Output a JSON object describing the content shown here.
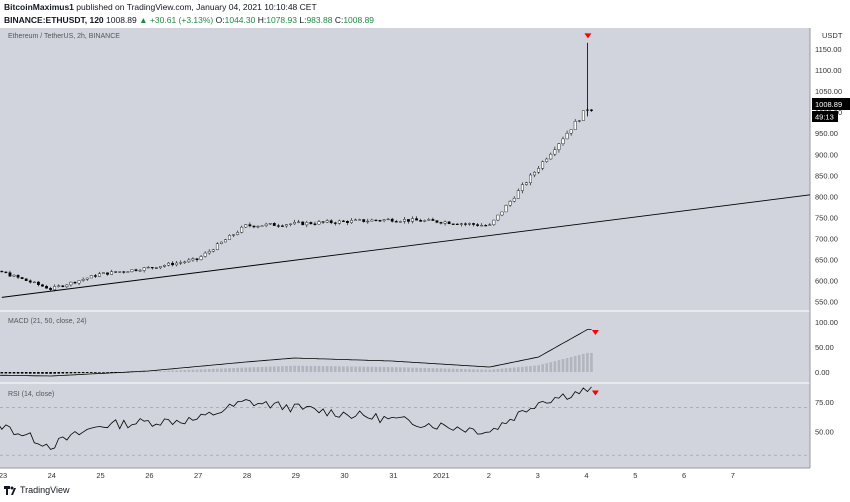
{
  "header": {
    "author": "BitcoinMaximus1",
    "published_text": "published on TradingView.com, January 04, 2021 10:10:48 CET",
    "symbol": "BINANCE:ETHUSDT, 120",
    "last": "1008.89",
    "change_icon": "up-arrow-icon",
    "change": "+30.61 (+3.13%)",
    "ohlc": [
      {
        "k": "O:",
        "v": "1044.30"
      },
      {
        "k": "H:",
        "v": "1078.93"
      },
      {
        "k": "L:",
        "v": "983.88"
      },
      {
        "k": "C:",
        "v": "1008.89"
      }
    ]
  },
  "price_pane": {
    "label": "Ethereum / TetherUS, 2h, BINANCE",
    "currency": "USDT",
    "last_price_tag": "1008.89",
    "countdown_tag": "49:13"
  },
  "macd_pane": {
    "label": "MACD (21, 50, close, 24)"
  },
  "rsi_pane": {
    "label": "RSI (14, close)"
  },
  "footer": {
    "brand": "TradingView",
    "logo_icon": "tradingview-logo-icon"
  },
  "colors": {
    "background": "#d1d4dc",
    "candle_up": "#ffffff",
    "candle_down": "#000000",
    "wick": "#000000",
    "marker": "#ff0000",
    "histogram_light": "#b2b5be",
    "line": "#000000"
  },
  "chart_data": [
    {
      "type": "candlestick",
      "title": "Ethereum / TetherUS, 2h, BINANCE",
      "x_tick_labels": [
        "23",
        "24",
        "25",
        "26",
        "27",
        "28",
        "29",
        "30",
        "31",
        "2021",
        "2",
        "3",
        "4",
        "5",
        "6",
        "7"
      ],
      "y_tick_labels": [
        "1150.00",
        "1100.00",
        "1050.00",
        "1000.00",
        "950.00",
        "900.00",
        "850.00",
        "800.00",
        "750.00",
        "700.00",
        "650.00",
        "600.00",
        "550.00"
      ],
      "ylim": [
        530,
        1200
      ],
      "approx_range_series": {
        "name": "",
        "points": [
          {
            "date": "2020-12-22",
            "price": 605
          },
          {
            "date": "2020-12-23",
            "price": 620
          },
          {
            "date": "2020-12-24",
            "price": 580
          },
          {
            "date": "2020-12-25",
            "price": 615
          },
          {
            "date": "2020-12-26",
            "price": 630
          },
          {
            "date": "2020-12-27",
            "price": 650
          },
          {
            "date": "2020-12-28",
            "price": 730
          },
          {
            "date": "2020-12-29",
            "price": 735
          },
          {
            "date": "2020-12-30",
            "price": 740
          },
          {
            "date": "2020-12-31",
            "price": 745
          },
          {
            "date": "2021-01-01",
            "price": 740
          },
          {
            "date": "2021-01-02",
            "price": 730
          },
          {
            "date": "2021-01-03",
            "price": 870
          },
          {
            "date": "2021-01-04",
            "price": 1008.89
          }
        ]
      },
      "support_trendline": {
        "start": {
          "date": "2020-12-23",
          "price": 560
        },
        "end": {
          "date": "2021-01-09",
          "price": 810
        }
      },
      "top_marker": {
        "date": "2021-01-04",
        "price": 1180
      }
    },
    {
      "type": "bar",
      "title": "MACD (21, 50, close, 24)",
      "y_tick_labels": [
        "100.00",
        "50.00",
        "0.00"
      ],
      "ylim": [
        -20,
        120
      ],
      "macd_line_approx": [
        {
          "date": "2020-12-22",
          "value": -5
        },
        {
          "date": "2020-12-24",
          "value": -8
        },
        {
          "date": "2020-12-26",
          "value": 2
        },
        {
          "date": "2020-12-28",
          "value": 20
        },
        {
          "date": "2020-12-29",
          "value": 28
        },
        {
          "date": "2020-12-31",
          "value": 22
        },
        {
          "date": "2021-01-02",
          "value": 10
        },
        {
          "date": "2021-01-03",
          "value": 30
        },
        {
          "date": "2021-01-04",
          "value": 85
        }
      ]
    },
    {
      "type": "line",
      "title": "RSI (14, close)",
      "y_tick_labels": [
        "75.00",
        "50.00"
      ],
      "ylim": [
        20,
        90
      ],
      "rsi_approx": [
        {
          "date": "2020-12-22",
          "value": 45
        },
        {
          "date": "2020-12-23",
          "value": 55
        },
        {
          "date": "2020-12-24",
          "value": 38
        },
        {
          "date": "2020-12-25",
          "value": 55
        },
        {
          "date": "2020-12-26",
          "value": 58
        },
        {
          "date": "2020-12-27",
          "value": 60
        },
        {
          "date": "2020-12-28",
          "value": 75
        },
        {
          "date": "2020-12-29",
          "value": 70
        },
        {
          "date": "2020-12-30",
          "value": 65
        },
        {
          "date": "2020-12-31",
          "value": 60
        },
        {
          "date": "2021-01-01",
          "value": 55
        },
        {
          "date": "2021-01-02",
          "value": 50
        },
        {
          "date": "2021-01-03",
          "value": 75
        },
        {
          "date": "2021-01-04",
          "value": 85
        }
      ]
    }
  ]
}
